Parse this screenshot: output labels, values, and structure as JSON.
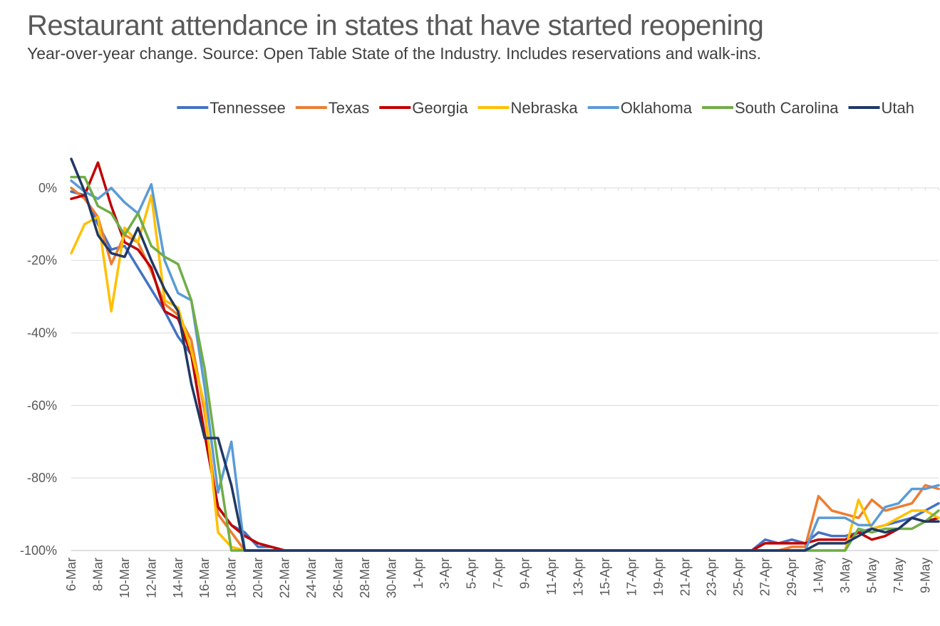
{
  "colors": {
    "Tennessee": "#4472c4",
    "Texas": "#ed7d31",
    "Georgia": "#c00000",
    "Nebraska": "#ffc000",
    "Oklahoma": "#5b9bd5",
    "South Carolina": "#70ad47",
    "Utah": "#203864"
  },
  "chart_data": {
    "type": "line",
    "title": "Restaurant attendance in states that have started reopening",
    "subtitle": "Year-over-year change. Source: Open Table State of the Industry. Includes reservations and walk-ins.",
    "xlabel": "",
    "ylabel": "",
    "ylim": [
      -100,
      10
    ],
    "yticks": [
      0,
      -20,
      -40,
      -60,
      -80,
      -100
    ],
    "ytick_labels": [
      "0%",
      "-20%",
      "-40%",
      "-60%",
      "-80%",
      "-100%"
    ],
    "grid": true,
    "legend_position": "top",
    "x": [
      "6-Mar",
      "7-Mar",
      "8-Mar",
      "9-Mar",
      "10-Mar",
      "11-Mar",
      "12-Mar",
      "13-Mar",
      "14-Mar",
      "15-Mar",
      "16-Mar",
      "17-Mar",
      "18-Mar",
      "19-Mar",
      "20-Mar",
      "21-Mar",
      "22-Mar",
      "23-Mar",
      "24-Mar",
      "25-Mar",
      "26-Mar",
      "27-Mar",
      "28-Mar",
      "29-Mar",
      "30-Mar",
      "31-Mar",
      "1-Apr",
      "2-Apr",
      "3-Apr",
      "4-Apr",
      "5-Apr",
      "6-Apr",
      "7-Apr",
      "8-Apr",
      "9-Apr",
      "10-Apr",
      "11-Apr",
      "12-Apr",
      "13-Apr",
      "14-Apr",
      "15-Apr",
      "16-Apr",
      "17-Apr",
      "18-Apr",
      "19-Apr",
      "20-Apr",
      "21-Apr",
      "22-Apr",
      "23-Apr",
      "24-Apr",
      "25-Apr",
      "26-Apr",
      "27-Apr",
      "28-Apr",
      "29-Apr",
      "30-Apr",
      "1-May",
      "2-May",
      "3-May",
      "4-May",
      "5-May",
      "6-May",
      "7-May",
      "8-May",
      "9-May",
      "10-May"
    ],
    "x_tick_labels": [
      "6-Mar",
      "8-Mar",
      "10-Mar",
      "12-Mar",
      "14-Mar",
      "16-Mar",
      "18-Mar",
      "20-Mar",
      "22-Mar",
      "24-Mar",
      "26-Mar",
      "28-Mar",
      "30-Mar",
      "1-Apr",
      "3-Apr",
      "5-Apr",
      "7-Apr",
      "9-Apr",
      "11-Apr",
      "13-Apr",
      "15-Apr",
      "17-Apr",
      "19-Apr",
      "21-Apr",
      "23-Apr",
      "25-Apr",
      "27-Apr",
      "29-Apr",
      "1-May",
      "3-May",
      "5-May",
      "7-May",
      "9-May"
    ],
    "series": [
      {
        "name": "Tennessee",
        "values": [
          -1,
          -2,
          -10,
          -17,
          -16,
          -22,
          -28,
          -34,
          -41,
          -46,
          -68,
          -88,
          -93,
          -95,
          -99,
          -99,
          -100,
          -100,
          -100,
          -100,
          -100,
          -100,
          -100,
          -100,
          -100,
          -100,
          -100,
          -100,
          -100,
          -100,
          -100,
          -100,
          -100,
          -100,
          -100,
          -100,
          -100,
          -100,
          -100,
          -100,
          -100,
          -100,
          -100,
          -100,
          -100,
          -100,
          -100,
          -100,
          -100,
          -100,
          -100,
          -100,
          -97,
          -98,
          -97,
          -98,
          -95,
          -96,
          -96,
          -95,
          -94,
          -93,
          -92,
          -91,
          -89,
          -87
        ]
      },
      {
        "name": "Texas",
        "values": [
          0,
          -3,
          -8,
          -21,
          -13,
          -15,
          -23,
          -32,
          -35,
          -42,
          -62,
          -90,
          -95,
          -100,
          -100,
          -100,
          -100,
          -100,
          -100,
          -100,
          -100,
          -100,
          -100,
          -100,
          -100,
          -100,
          -100,
          -100,
          -100,
          -100,
          -100,
          -100,
          -100,
          -100,
          -100,
          -100,
          -100,
          -100,
          -100,
          -100,
          -100,
          -100,
          -100,
          -100,
          -100,
          -100,
          -100,
          -100,
          -100,
          -100,
          -100,
          -100,
          -100,
          -100,
          -99,
          -99,
          -85,
          -89,
          -90,
          -91,
          -86,
          -89,
          -88,
          -87,
          -82,
          -83
        ]
      },
      {
        "name": "Georgia",
        "values": [
          -3,
          -2,
          7,
          -5,
          -15,
          -17,
          -22,
          -34,
          -36,
          -46,
          -68,
          -88,
          -93,
          -96,
          -98,
          -99,
          -100,
          -100,
          -100,
          -100,
          -100,
          -100,
          -100,
          -100,
          -100,
          -100,
          -100,
          -100,
          -100,
          -100,
          -100,
          -100,
          -100,
          -100,
          -100,
          -100,
          -100,
          -100,
          -100,
          -100,
          -100,
          -100,
          -100,
          -100,
          -100,
          -100,
          -100,
          -100,
          -100,
          -100,
          -100,
          -100,
          -98,
          -98,
          -98,
          -98,
          -97,
          -97,
          -97,
          -95,
          -97,
          -96,
          -94,
          -91,
          -92,
          -91
        ]
      },
      {
        "name": "Nebraska",
        "values": [
          -18,
          -10,
          -8,
          -34,
          -11,
          -15,
          -2,
          -31,
          -33,
          -45,
          -60,
          -95,
          -99,
          -100,
          -100,
          -100,
          -100,
          -100,
          -100,
          -100,
          -100,
          -100,
          -100,
          -100,
          -100,
          -100,
          -100,
          -100,
          -100,
          -100,
          -100,
          -100,
          -100,
          -100,
          -100,
          -100,
          -100,
          -100,
          -100,
          -100,
          -100,
          -100,
          -100,
          -100,
          -100,
          -100,
          -100,
          -100,
          -100,
          -100,
          -100,
          -100,
          -100,
          -100,
          -100,
          -100,
          -100,
          -100,
          -100,
          -86,
          -94,
          -93,
          -91,
          -89,
          -89,
          -91
        ]
      },
      {
        "name": "Oklahoma",
        "values": [
          2,
          -1,
          -3,
          0,
          -4,
          -7,
          1,
          -20,
          -29,
          -31,
          -55,
          -84,
          -70,
          -100,
          -100,
          -100,
          -100,
          -100,
          -100,
          -100,
          -100,
          -100,
          -100,
          -100,
          -100,
          -100,
          -100,
          -100,
          -100,
          -100,
          -100,
          -100,
          -100,
          -100,
          -100,
          -100,
          -100,
          -100,
          -100,
          -100,
          -100,
          -100,
          -100,
          -100,
          -100,
          -100,
          -100,
          -100,
          -100,
          -100,
          -100,
          -100,
          -100,
          -100,
          -100,
          -100,
          -91,
          -91,
          -91,
          -93,
          -93,
          -88,
          -87,
          -83,
          -83,
          -82
        ]
      },
      {
        "name": "South Carolina",
        "values": [
          3,
          3,
          -5,
          -7,
          -13,
          -7,
          -16,
          -19,
          -21,
          -31,
          -50,
          -76,
          -100,
          -100,
          -100,
          -100,
          -100,
          -100,
          -100,
          -100,
          -100,
          -100,
          -100,
          -100,
          -100,
          -100,
          -100,
          -100,
          -100,
          -100,
          -100,
          -100,
          -100,
          -100,
          -100,
          -100,
          -100,
          -100,
          -100,
          -100,
          -100,
          -100,
          -100,
          -100,
          -100,
          -100,
          -100,
          -100,
          -100,
          -100,
          -100,
          -100,
          -100,
          -100,
          -100,
          -100,
          -100,
          -100,
          -100,
          -94,
          -95,
          -94,
          -94,
          -94,
          -92,
          -89
        ]
      },
      {
        "name": "Utah",
        "values": [
          8,
          -1,
          -13,
          -18,
          -19,
          -11,
          -20,
          -28,
          -34,
          -54,
          -69,
          -69,
          -82,
          -100,
          -100,
          -100,
          -100,
          -100,
          -100,
          -100,
          -100,
          -100,
          -100,
          -100,
          -100,
          -100,
          -100,
          -100,
          -100,
          -100,
          -100,
          -100,
          -100,
          -100,
          -100,
          -100,
          -100,
          -100,
          -100,
          -100,
          -100,
          -100,
          -100,
          -100,
          -100,
          -100,
          -100,
          -100,
          -100,
          -100,
          -100,
          -100,
          -100,
          -100,
          -100,
          -100,
          -98,
          -98,
          -98,
          -96,
          -94,
          -95,
          -94,
          -91,
          -92,
          -92
        ]
      }
    ]
  }
}
